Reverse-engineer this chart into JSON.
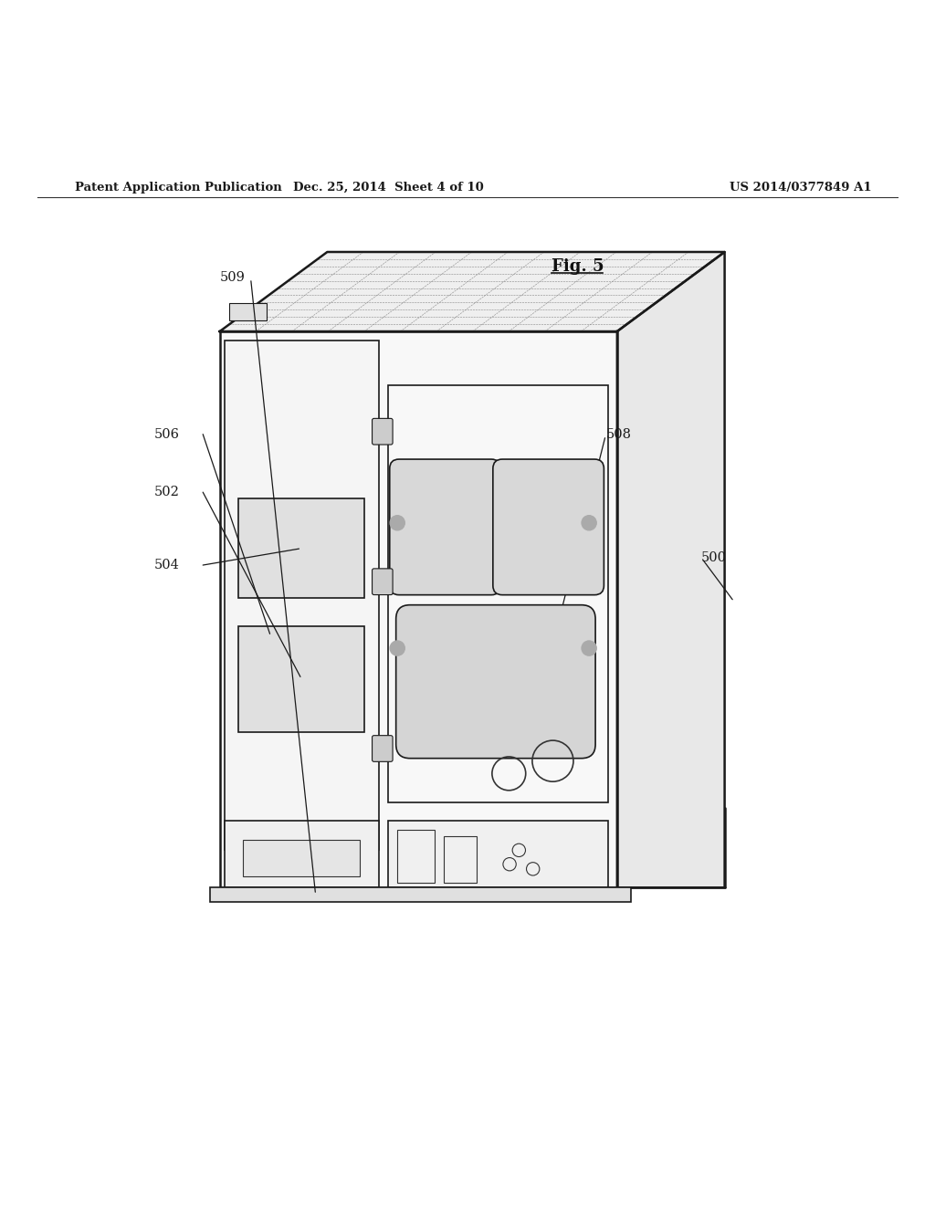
{
  "bg_color": "#ffffff",
  "header_left": "Patent Application Publication",
  "header_mid": "Dec. 25, 2014  Sheet 4 of 10",
  "header_right": "US 2014/0377849 A1",
  "fig_label": "Fig. 5",
  "color_main": "#1a1a1a",
  "color_detail": "#333333",
  "lw_main": 1.8,
  "lw_detail": 1.2,
  "lw_thin": 0.8
}
